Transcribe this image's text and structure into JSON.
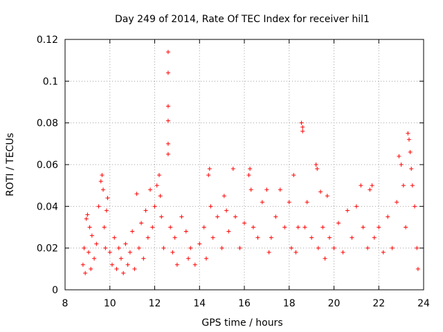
{
  "chart_data": {
    "type": "scatter",
    "title": "Day 249 of 2014, Rate Of TEC Index for receiver hil1",
    "xlabel": "GPS time / hours",
    "ylabel": "ROTI / TECUs",
    "xlim": [
      8,
      24
    ],
    "ylim": [
      0,
      0.12
    ],
    "x_ticks": [
      8,
      10,
      12,
      14,
      16,
      18,
      20,
      22,
      24
    ],
    "y_ticks": [
      0,
      0.02,
      0.04,
      0.06,
      0.08,
      0.1,
      0.12
    ],
    "x_tick_labels": [
      "8",
      "10",
      "12",
      "14",
      "16",
      "18",
      "20",
      "22",
      "24"
    ],
    "y_tick_labels": [
      "0",
      "0.02",
      "0.04",
      "0.06",
      "0.08",
      "0.1",
      "0.12"
    ],
    "grid": true,
    "marker": "+",
    "marker_color": "#ff0000",
    "series": [
      {
        "name": "ROTI",
        "points": [
          [
            8.8,
            0.012
          ],
          [
            8.85,
            0.02
          ],
          [
            8.9,
            0.008
          ],
          [
            8.95,
            0.034
          ],
          [
            9.0,
            0.036
          ],
          [
            9.05,
            0.018
          ],
          [
            9.1,
            0.03
          ],
          [
            9.15,
            0.01
          ],
          [
            9.2,
            0.026
          ],
          [
            9.3,
            0.015
          ],
          [
            9.4,
            0.022
          ],
          [
            9.5,
            0.04
          ],
          [
            9.6,
            0.052
          ],
          [
            9.65,
            0.055
          ],
          [
            9.7,
            0.048
          ],
          [
            9.75,
            0.03
          ],
          [
            9.8,
            0.02
          ],
          [
            9.85,
            0.038
          ],
          [
            9.9,
            0.044
          ],
          [
            10.0,
            0.018
          ],
          [
            10.1,
            0.012
          ],
          [
            10.2,
            0.025
          ],
          [
            10.3,
            0.01
          ],
          [
            10.4,
            0.02
          ],
          [
            10.5,
            0.015
          ],
          [
            10.6,
            0.008
          ],
          [
            10.7,
            0.022
          ],
          [
            10.8,
            0.012
          ],
          [
            10.9,
            0.018
          ],
          [
            11.0,
            0.028
          ],
          [
            11.1,
            0.01
          ],
          [
            11.2,
            0.046
          ],
          [
            11.3,
            0.02
          ],
          [
            11.4,
            0.032
          ],
          [
            11.5,
            0.015
          ],
          [
            11.6,
            0.038
          ],
          [
            11.7,
            0.025
          ],
          [
            11.8,
            0.048
          ],
          [
            11.9,
            0.03
          ],
          [
            12.0,
            0.04
          ],
          [
            12.1,
            0.05
          ],
          [
            12.2,
            0.055
          ],
          [
            12.25,
            0.045
          ],
          [
            12.3,
            0.035
          ],
          [
            12.4,
            0.02
          ],
          [
            12.6,
            0.114
          ],
          [
            12.6,
            0.104
          ],
          [
            12.6,
            0.088
          ],
          [
            12.6,
            0.081
          ],
          [
            12.6,
            0.07
          ],
          [
            12.6,
            0.065
          ],
          [
            12.7,
            0.03
          ],
          [
            12.8,
            0.018
          ],
          [
            12.9,
            0.025
          ],
          [
            13.0,
            0.012
          ],
          [
            13.2,
            0.035
          ],
          [
            13.4,
            0.028
          ],
          [
            13.5,
            0.015
          ],
          [
            13.6,
            0.02
          ],
          [
            13.8,
            0.012
          ],
          [
            14.0,
            0.022
          ],
          [
            14.2,
            0.03
          ],
          [
            14.3,
            0.015
          ],
          [
            14.4,
            0.055
          ],
          [
            14.45,
            0.058
          ],
          [
            14.5,
            0.04
          ],
          [
            14.6,
            0.025
          ],
          [
            14.8,
            0.035
          ],
          [
            15.0,
            0.02
          ],
          [
            15.1,
            0.045
          ],
          [
            15.2,
            0.038
          ],
          [
            15.3,
            0.028
          ],
          [
            15.5,
            0.058
          ],
          [
            15.6,
            0.035
          ],
          [
            15.8,
            0.02
          ],
          [
            16.0,
            0.032
          ],
          [
            16.2,
            0.055
          ],
          [
            16.25,
            0.058
          ],
          [
            16.3,
            0.048
          ],
          [
            16.4,
            0.03
          ],
          [
            16.6,
            0.025
          ],
          [
            16.8,
            0.042
          ],
          [
            17.0,
            0.048
          ],
          [
            17.1,
            0.018
          ],
          [
            17.2,
            0.025
          ],
          [
            17.4,
            0.035
          ],
          [
            17.6,
            0.048
          ],
          [
            17.8,
            0.03
          ],
          [
            18.0,
            0.042
          ],
          [
            18.1,
            0.02
          ],
          [
            18.2,
            0.055
          ],
          [
            18.3,
            0.018
          ],
          [
            18.4,
            0.03
          ],
          [
            18.55,
            0.08
          ],
          [
            18.6,
            0.078
          ],
          [
            18.6,
            0.076
          ],
          [
            18.7,
            0.03
          ],
          [
            18.8,
            0.042
          ],
          [
            19.0,
            0.025
          ],
          [
            19.2,
            0.06
          ],
          [
            19.25,
            0.058
          ],
          [
            19.3,
            0.02
          ],
          [
            19.4,
            0.047
          ],
          [
            19.5,
            0.03
          ],
          [
            19.6,
            0.015
          ],
          [
            19.7,
            0.045
          ],
          [
            19.8,
            0.025
          ],
          [
            20.0,
            0.02
          ],
          [
            20.2,
            0.032
          ],
          [
            20.4,
            0.018
          ],
          [
            20.6,
            0.038
          ],
          [
            20.8,
            0.025
          ],
          [
            21.0,
            0.04
          ],
          [
            21.2,
            0.05
          ],
          [
            21.3,
            0.03
          ],
          [
            21.5,
            0.02
          ],
          [
            21.6,
            0.048
          ],
          [
            21.7,
            0.05
          ],
          [
            21.8,
            0.025
          ],
          [
            22.0,
            0.03
          ],
          [
            22.2,
            0.018
          ],
          [
            22.4,
            0.035
          ],
          [
            22.6,
            0.02
          ],
          [
            22.8,
            0.042
          ],
          [
            22.9,
            0.064
          ],
          [
            23.0,
            0.06
          ],
          [
            23.1,
            0.05
          ],
          [
            23.2,
            0.03
          ],
          [
            23.3,
            0.075
          ],
          [
            23.35,
            0.072
          ],
          [
            23.4,
            0.066
          ],
          [
            23.45,
            0.058
          ],
          [
            23.5,
            0.05
          ],
          [
            23.6,
            0.04
          ],
          [
            23.7,
            0.02
          ],
          [
            23.75,
            0.01
          ]
        ]
      }
    ]
  }
}
